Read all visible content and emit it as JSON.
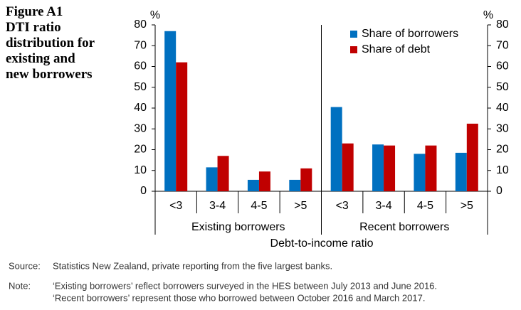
{
  "chart_data": {
    "type": "bar",
    "figure_label": "Figure A1",
    "title": "DTI ratio distribution for existing and new borrowers",
    "y_unit_label": "%",
    "x_title": "Debt-to-income ratio",
    "categories": [
      "<3",
      "3-4",
      "4-5",
      ">5",
      "<3",
      "3-4",
      "4-5",
      ">5"
    ],
    "group_labels": [
      "Existing borrowers",
      "Recent borrowers"
    ],
    "series": [
      {
        "name": "Share of borrowers",
        "color": "#0070C0",
        "values": [
          77,
          11.5,
          5.5,
          5.5,
          40.5,
          22.5,
          18,
          18.5
        ]
      },
      {
        "name": "Share of debt",
        "color": "#C00000",
        "values": [
          62,
          17,
          9.5,
          11,
          23,
          22,
          22,
          32.5
        ]
      }
    ],
    "ylim": [
      0,
      80
    ],
    "yticks": [
      0,
      10,
      20,
      30,
      40,
      50,
      60,
      70,
      80
    ],
    "y2lim": [
      0,
      80
    ],
    "y2ticks": [
      0,
      10,
      20,
      30,
      40,
      50,
      60,
      70,
      80
    ],
    "legend": "top-right",
    "source_label": "Source:",
    "source": "Statistics New Zealand, private reporting from the five largest banks.",
    "note_label": "Note:",
    "note_lines": [
      "‘Existing borrowers’ reflect borrowers surveyed in the HES between July 2013 and June 2016.",
      "‘Recent borrowers’ represent those who borrowed between October 2016 and March 2017."
    ]
  }
}
